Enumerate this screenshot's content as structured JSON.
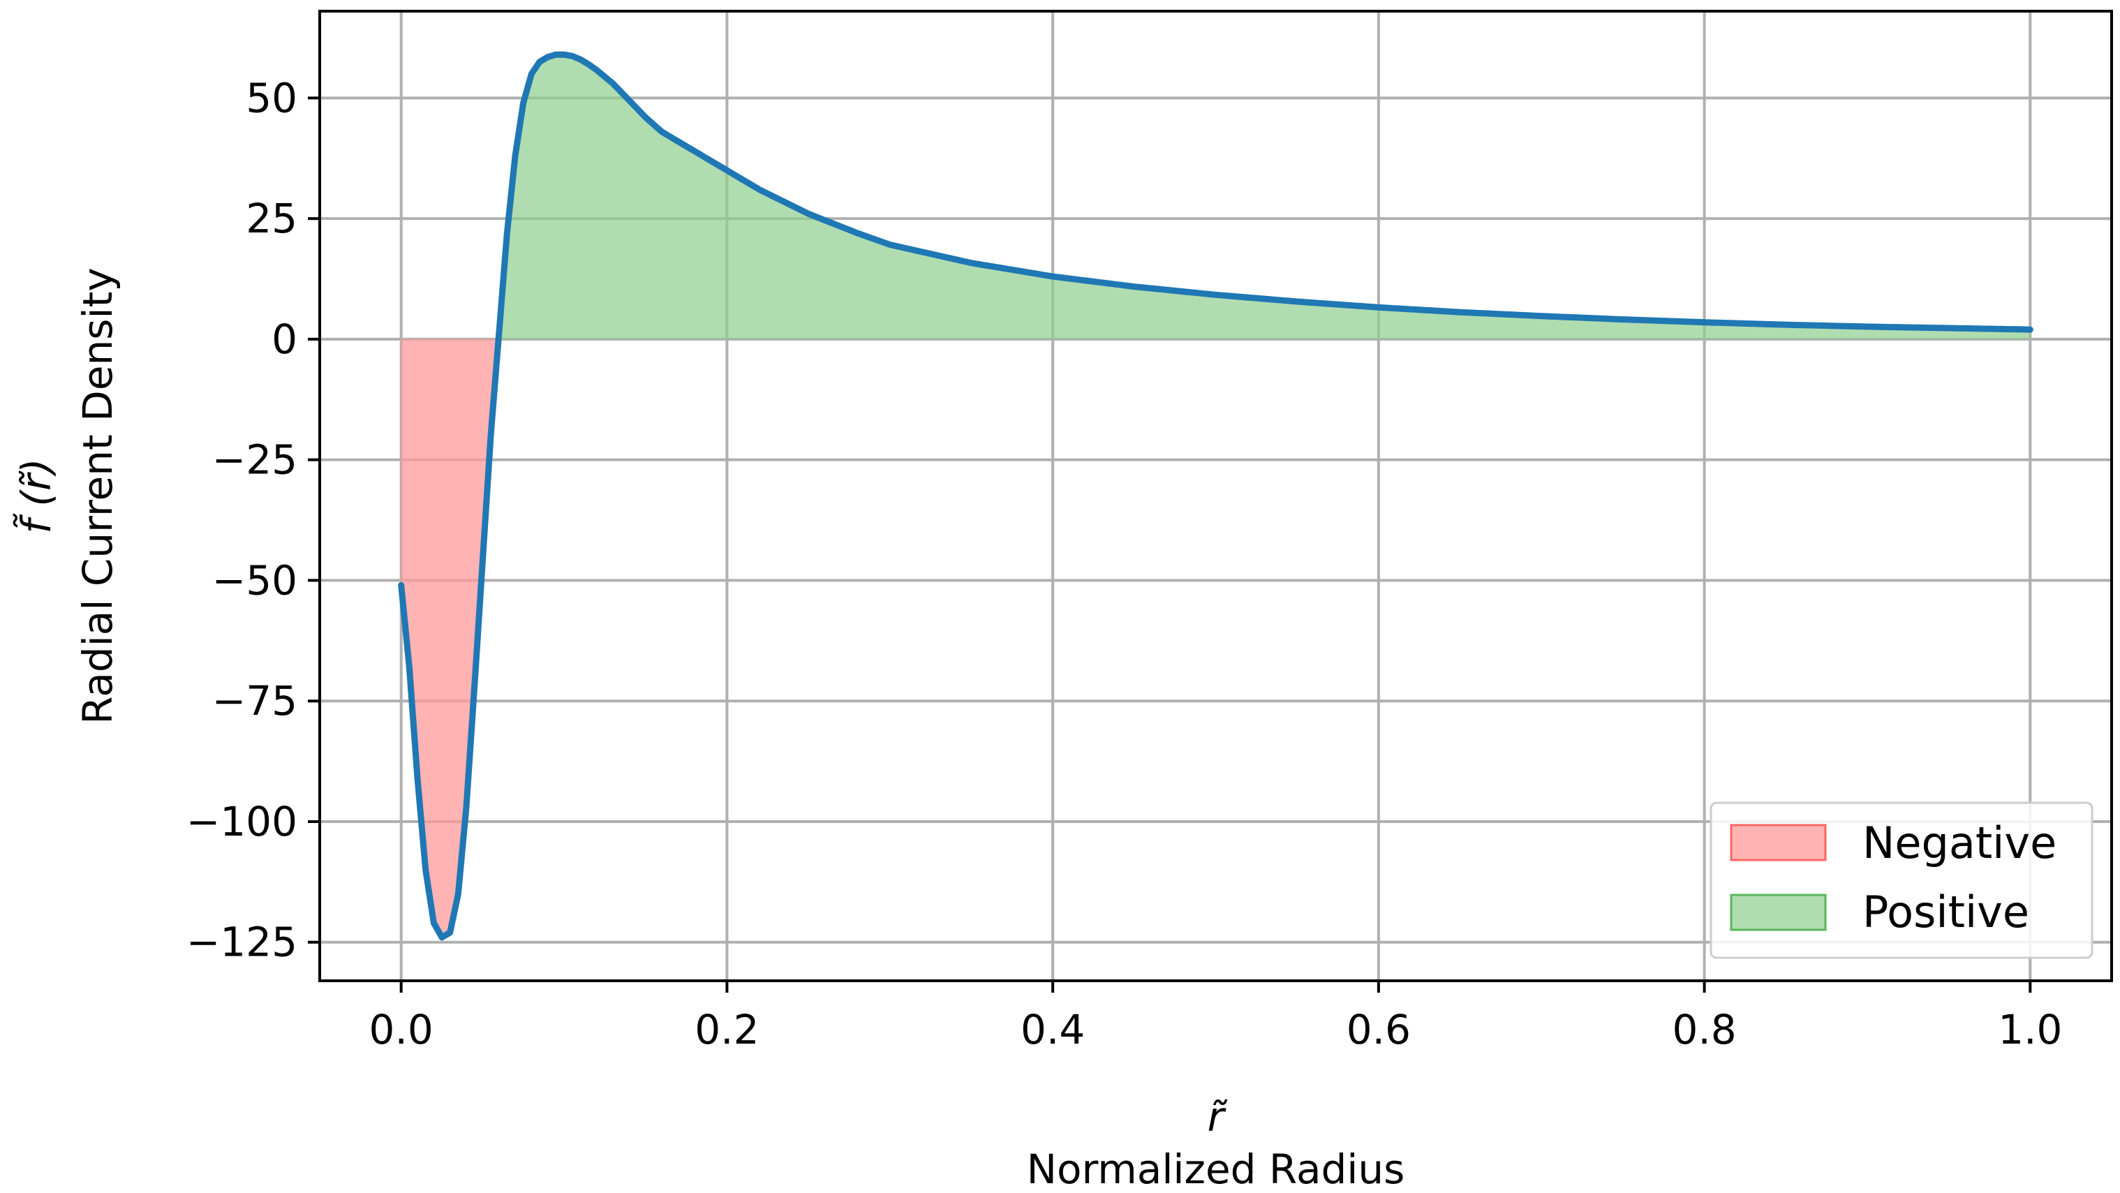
{
  "chart_data": {
    "type": "line",
    "xlabel_symbol": "r̃",
    "xlabel": "Normalized Radius",
    "ylabel_symbol": "f̃ (r̃)",
    "ylabel": "Radial Current Density",
    "xlim": [
      -0.05,
      1.05
    ],
    "ylim": [
      -133,
      68
    ],
    "xticks": [
      0.0,
      0.2,
      0.4,
      0.6,
      0.8,
      1.0
    ],
    "xtick_labels": [
      "0.0",
      "0.2",
      "0.4",
      "0.6",
      "0.8",
      "1.0"
    ],
    "yticks": [
      50,
      25,
      0,
      -25,
      -50,
      -75,
      -100,
      -125
    ],
    "ytick_labels": [
      "50",
      "25",
      "0",
      "−25",
      "−50",
      "−75",
      "−100",
      "−125"
    ],
    "grid": true,
    "legend_position": "lower right",
    "legend": [
      {
        "label": "Negative",
        "color": "#ff9999"
      },
      {
        "label": "Positive",
        "color": "#8fce8f"
      }
    ],
    "series": [
      {
        "line_color": "#1f77b4",
        "x": [
          0.0,
          0.005,
          0.01,
          0.015,
          0.02,
          0.025,
          0.03,
          0.035,
          0.04,
          0.045,
          0.05,
          0.055,
          0.06,
          0.065,
          0.07,
          0.075,
          0.08,
          0.085,
          0.09,
          0.095,
          0.1,
          0.105,
          0.11,
          0.115,
          0.12,
          0.13,
          0.14,
          0.15,
          0.16,
          0.18,
          0.2,
          0.22,
          0.25,
          0.28,
          0.3,
          0.35,
          0.4,
          0.45,
          0.5,
          0.55,
          0.6,
          0.65,
          0.7,
          0.75,
          0.8,
          0.85,
          0.9,
          0.95,
          1.0
        ],
        "y": [
          -51,
          -68,
          -91,
          -110,
          -121,
          -124,
          -123,
          -115,
          -97,
          -72,
          -46,
          -20,
          1,
          22,
          38,
          49,
          55,
          57.5,
          58.5,
          59,
          59,
          58.7,
          58,
          57,
          55.8,
          53,
          49.5,
          46,
          43,
          39,
          35,
          31,
          26,
          22,
          19.6,
          15.8,
          13,
          10.9,
          9.2,
          7.8,
          6.6,
          5.6,
          4.8,
          4.1,
          3.5,
          3.0,
          2.6,
          2.3,
          2.0
        ]
      }
    ]
  }
}
